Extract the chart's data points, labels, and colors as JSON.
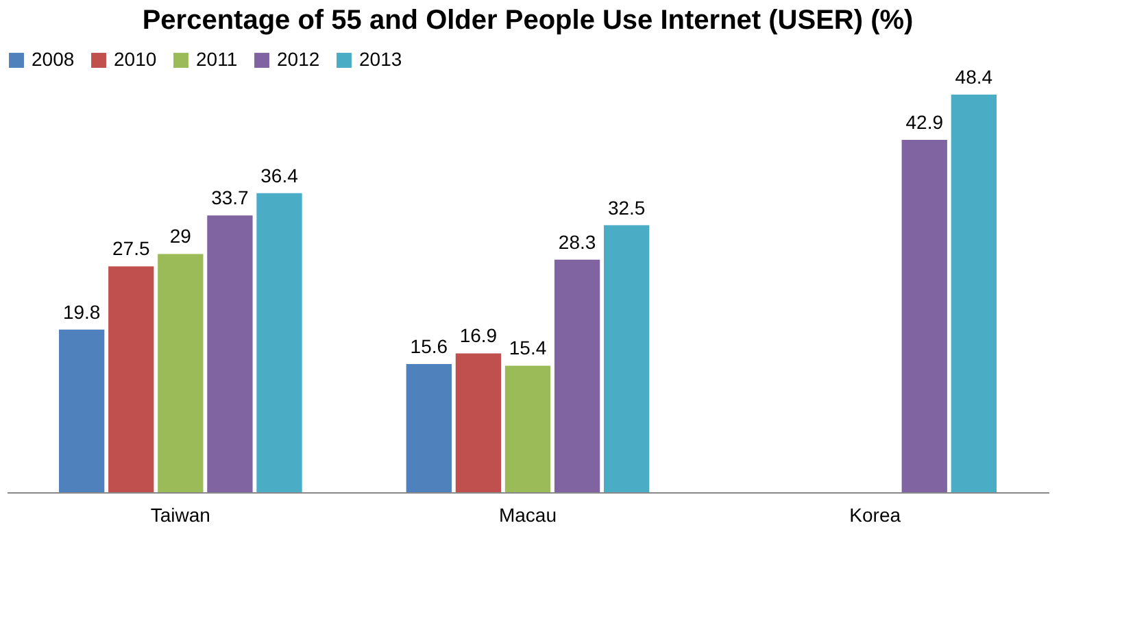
{
  "chart_data": {
    "type": "bar",
    "title": "Percentage of 55 and Older People Use Internet (USER) (%)",
    "categories": [
      "Taiwan",
      "Macau",
      "Korea"
    ],
    "series": [
      {
        "name": "2008",
        "color": "#4f81bd",
        "values": [
          19.8,
          15.6,
          null
        ]
      },
      {
        "name": "2010",
        "color": "#c0504d",
        "values": [
          27.5,
          16.9,
          null
        ]
      },
      {
        "name": "2011",
        "color": "#9bbb59",
        "values": [
          29,
          15.4,
          null
        ]
      },
      {
        "name": "2012",
        "color": "#8064a2",
        "values": [
          33.7,
          28.3,
          42.9
        ]
      },
      {
        "name": "2013",
        "color": "#4bacc6",
        "values": [
          36.4,
          32.5,
          48.4
        ]
      }
    ],
    "data_labels": true,
    "legend": "top",
    "tick_labels": "x"
  }
}
